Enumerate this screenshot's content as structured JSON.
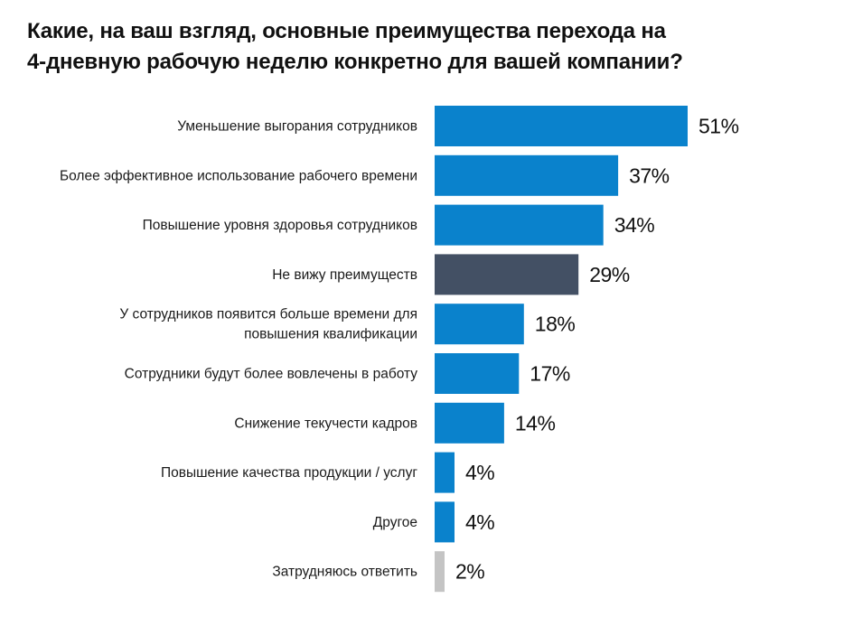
{
  "title_line1": "Какие, на ваш взгляд, основные преимущества перехода на",
  "title_line2": "4-дневную рабочую  неделю конкретно для вашей компании?",
  "chart_data": {
    "type": "bar",
    "orientation": "horizontal",
    "title": "Какие, на ваш взгляд, основные преимущества перехода на 4-дневную рабочую  неделю конкретно для вашей компании?",
    "categories": [
      [
        "Уменьшение выгорания сотрудников"
      ],
      [
        "Более эффективное использование рабочего времени"
      ],
      [
        "Повышение уровня здоровья сотрудников"
      ],
      [
        "Не вижу преимуществ"
      ],
      [
        "У сотрудников появится больше времени для",
        "повышения квалификации"
      ],
      [
        "Сотрудники будут более вовлечены в работу"
      ],
      [
        "Снижение текучести кадров"
      ],
      [
        "Повышение качества продукции / услуг"
      ],
      [
        "Другое"
      ],
      [
        "Затрудняюсь ответить"
      ]
    ],
    "values": [
      51,
      37,
      34,
      29,
      18,
      17,
      14,
      4,
      4,
      2
    ],
    "value_labels": [
      "51%",
      "37%",
      "34%",
      "29%",
      "18%",
      "17%",
      "14%",
      "4%",
      "4%",
      "2%"
    ],
    "bar_colors": [
      "#0a82cc",
      "#0a82cc",
      "#0a82cc",
      "#435064",
      "#0a82cc",
      "#0a82cc",
      "#0a82cc",
      "#0a82cc",
      "#0a82cc",
      "#c4c4c4"
    ],
    "unit": "%",
    "xlim": [
      0,
      51
    ],
    "grid": false,
    "legend": "none"
  }
}
